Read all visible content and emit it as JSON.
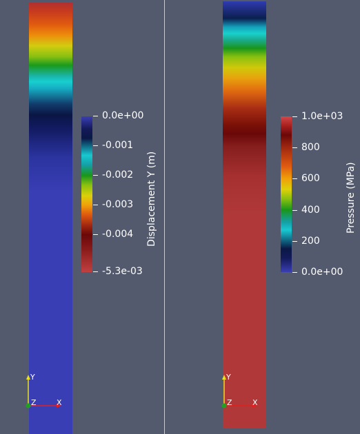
{
  "views": {
    "left": {
      "colorbar": {
        "title": "Displacement Y (m)",
        "ticks": [
          "0.0e+00",
          "-0.001",
          "-0.002",
          "-0.003",
          "-0.004",
          "-5.3e-03"
        ]
      },
      "orientation_axes": {
        "x": "X",
        "y": "Y",
        "z": "Z"
      }
    },
    "right": {
      "colorbar": {
        "title": "Pressure (MPa)",
        "ticks": [
          "1.0e+03",
          "800",
          "600",
          "400",
          "200",
          "0.0e+00"
        ]
      },
      "orientation_axes": {
        "x": "X",
        "y": "Y",
        "z": "Z"
      }
    }
  },
  "colors": {
    "background": "#545a6e",
    "axis_x": "#e02020",
    "axis_y": "#e8e020",
    "axis_z": "#20a020"
  }
}
